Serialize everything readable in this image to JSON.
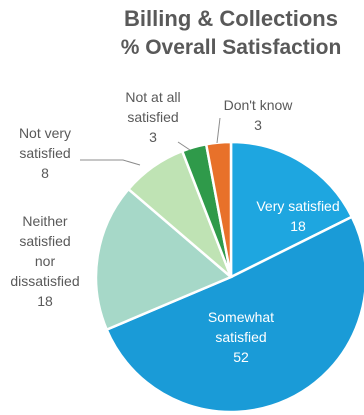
{
  "chart_data": {
    "type": "pie",
    "title": "Billing & Collections",
    "subtitle": "% Overall Satisfaction",
    "slices": [
      {
        "label": [
          "Very satisfied"
        ],
        "value": 18,
        "color": "#1ea6e0"
      },
      {
        "label": [
          "Somewhat",
          "satisfied"
        ],
        "value": 52,
        "color": "#1a9bd7"
      },
      {
        "label": [
          "Neither",
          "satisfied",
          "nor",
          "dissatisfied"
        ],
        "value": 18,
        "color": "#a6d8c8"
      },
      {
        "label": [
          "Not very",
          "satisfied"
        ],
        "value": 8,
        "color": "#bfe3b4"
      },
      {
        "label": [
          "Not at all",
          "satisfied"
        ],
        "value": 3,
        "color": "#2f9a4a"
      },
      {
        "label": [
          "Don't know"
        ],
        "value": 3,
        "color": "#e8712a"
      }
    ],
    "legend": "none"
  }
}
